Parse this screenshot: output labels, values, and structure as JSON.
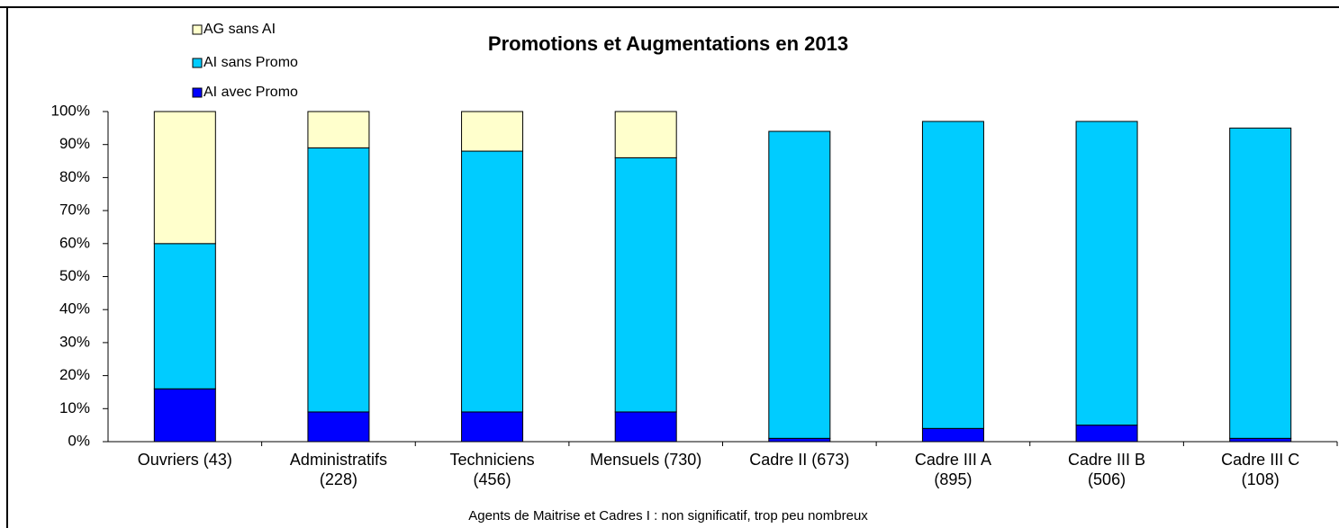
{
  "chart_data": {
    "type": "stacked_bar",
    "title": "Promotions et Augmentations en 2013",
    "categories": [
      [
        "Ouvriers  (43)"
      ],
      [
        "Administratifs",
        "(228)"
      ],
      [
        "Techniciens",
        "(456)"
      ],
      [
        "Mensuels (730)"
      ],
      [
        "Cadre II (673)"
      ],
      [
        "Cadre III A",
        "(895)"
      ],
      [
        "Cadre III B",
        "(506)"
      ],
      [
        "Cadre III C",
        "(108)"
      ]
    ],
    "series": [
      {
        "name": "AI avec Promo",
        "color": "#0000ff",
        "values": [
          16,
          9,
          9,
          9,
          1,
          4,
          5,
          1
        ]
      },
      {
        "name": "AI sans Promo",
        "color": "#00ccff",
        "values": [
          44,
          80,
          79,
          77,
          93,
          93,
          92,
          94
        ]
      },
      {
        "name": "AG sans AI",
        "color": "#ffffcc",
        "values": [
          40,
          11,
          12,
          14,
          0,
          0,
          0,
          0
        ]
      }
    ],
    "ylim": [
      0,
      100
    ],
    "yticks": [
      {
        "value": 0,
        "label": "0%"
      },
      {
        "value": 10,
        "label": "10%"
      },
      {
        "value": 20,
        "label": "20%"
      },
      {
        "value": 30,
        "label": "30%"
      },
      {
        "value": 40,
        "label": "40%"
      },
      {
        "value": 50,
        "label": "50%"
      },
      {
        "value": 60,
        "label": "60%"
      },
      {
        "value": 70,
        "label": "70%"
      },
      {
        "value": 80,
        "label": "80%"
      },
      {
        "value": 90,
        "label": "90%"
      },
      {
        "value": 100,
        "label": "100%"
      }
    ],
    "grid": false,
    "footnote": "Agents de Maitrise et Cadres I : non significatif, trop peu nombreux"
  }
}
